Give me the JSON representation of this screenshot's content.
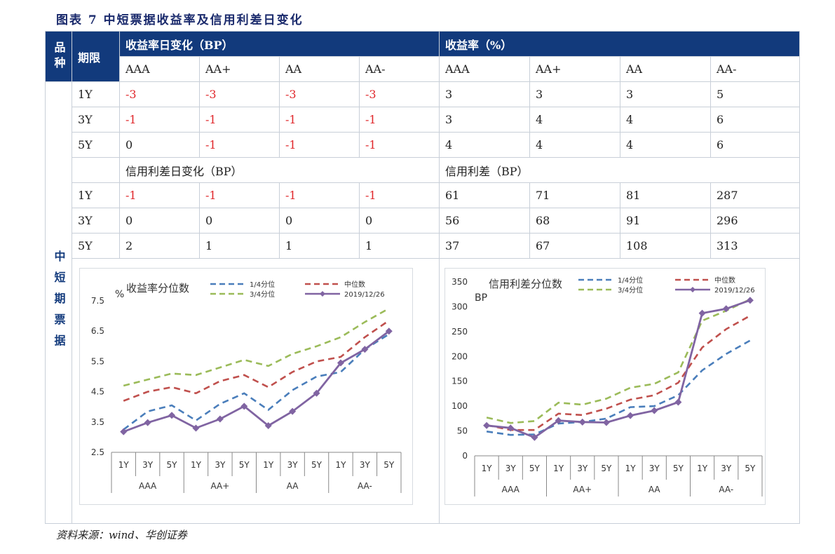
{
  "title": "图表 7   中短票据收益率及信用利差日变化",
  "source": "资料来源：wind、华创证券",
  "table": {
    "col_pinzhong": "品种",
    "col_qixian": "期限",
    "header_yield_change": "收益率日变化（BP）",
    "header_yield": "收益率（%）",
    "ratings": [
      "AAA",
      "AA+",
      "AA",
      "AA-"
    ],
    "category": "中短期票据",
    "yield_rows": [
      {
        "term": "1Y",
        "chg": [
          "-3",
          "-3",
          "-3",
          "-3"
        ],
        "val": [
          "3",
          "3",
          "3",
          "5"
        ]
      },
      {
        "term": "3Y",
        "chg": [
          "-1",
          "-1",
          "-1",
          "-1"
        ],
        "val": [
          "3",
          "4",
          "4",
          "6"
        ]
      },
      {
        "term": "5Y",
        "chg": [
          "0",
          "-1",
          "-1",
          "-1"
        ],
        "val": [
          "4",
          "4",
          "4",
          "6"
        ]
      }
    ],
    "header_spread_change": "信用利差日变化（BP）",
    "header_spread": "信用利差（BP）",
    "spread_rows": [
      {
        "term": "1Y",
        "chg": [
          "-1",
          "-1",
          "-1",
          "-1"
        ],
        "val": [
          "61",
          "71",
          "81",
          "287"
        ]
      },
      {
        "term": "3Y",
        "chg": [
          "0",
          "0",
          "0",
          "0"
        ],
        "val": [
          "56",
          "68",
          "91",
          "296"
        ]
      },
      {
        "term": "5Y",
        "chg": [
          "2",
          "1",
          "1",
          "1"
        ],
        "val": [
          "37",
          "67",
          "108",
          "313"
        ]
      }
    ]
  },
  "colors": {
    "q1": "#4a7ebb",
    "median": "#c0504d",
    "q3": "#9bbb59",
    "current": "#8064a2",
    "header_bg": "#123a7c",
    "negative": "#e0262a"
  },
  "chart_data": [
    {
      "type": "line",
      "title": "收益率分位数",
      "ylabel": "%",
      "ylim": [
        2.5,
        7.5
      ],
      "yticks": [
        "2.5",
        "3.5",
        "4.5",
        "5.5",
        "6.5",
        "7.5"
      ],
      "x_terms": [
        "1Y",
        "3Y",
        "5Y",
        "1Y",
        "3Y",
        "5Y",
        "1Y",
        "3Y",
        "5Y",
        "1Y",
        "3Y",
        "5Y"
      ],
      "groups": [
        "AAA",
        "AA+",
        "AA",
        "AA-"
      ],
      "series": [
        {
          "name": "1/4分位",
          "style": "dashed",
          "color_key": "q1",
          "values": [
            3.25,
            3.85,
            4.05,
            3.55,
            4.1,
            4.45,
            3.9,
            4.55,
            5.0,
            5.15,
            5.9,
            6.4
          ]
        },
        {
          "name": "中位数",
          "style": "dashed",
          "color_key": "median",
          "values": [
            4.2,
            4.5,
            4.65,
            4.45,
            4.85,
            5.05,
            4.65,
            5.15,
            5.5,
            5.65,
            6.3,
            6.85
          ]
        },
        {
          "name": "3/4分位",
          "style": "dashed",
          "color_key": "q3",
          "values": [
            4.7,
            4.9,
            5.1,
            5.05,
            5.3,
            5.55,
            5.35,
            5.75,
            6.0,
            6.3,
            6.8,
            7.25
          ]
        },
        {
          "name": "2019/12/26",
          "style": "solid-diamond",
          "color_key": "current",
          "values": [
            3.18,
            3.48,
            3.72,
            3.3,
            3.6,
            4.02,
            3.38,
            3.85,
            4.45,
            5.45,
            5.9,
            6.5
          ]
        }
      ]
    },
    {
      "type": "line",
      "title": "信用利差分位数",
      "ylabel": "BP",
      "ylim": [
        0,
        350
      ],
      "yticks": [
        "0",
        "50",
        "100",
        "150",
        "200",
        "250",
        "300",
        "350"
      ],
      "x_terms": [
        "1Y",
        "3Y",
        "5Y",
        "1Y",
        "3Y",
        "5Y",
        "1Y",
        "3Y",
        "5Y",
        "1Y",
        "3Y",
        "5Y"
      ],
      "groups": [
        "AAA",
        "AA+",
        "AA",
        "AA-"
      ],
      "series": [
        {
          "name": "1/4分位",
          "style": "dashed",
          "color_key": "q1",
          "values": [
            49,
            42,
            43,
            65,
            68,
            75,
            98,
            100,
            122,
            172,
            205,
            232
          ]
        },
        {
          "name": "中位数",
          "style": "dashed",
          "color_key": "median",
          "values": [
            62,
            52,
            52,
            85,
            82,
            95,
            113,
            122,
            147,
            218,
            255,
            282
          ]
        },
        {
          "name": "3/4分位",
          "style": "dashed",
          "color_key": "q3",
          "values": [
            77,
            66,
            70,
            107,
            103,
            115,
            137,
            145,
            168,
            272,
            292,
            315
          ]
        },
        {
          "name": "2019/12/26",
          "style": "solid-diamond",
          "color_key": "current",
          "values": [
            61,
            56,
            37,
            71,
            68,
            67,
            81,
            91,
            108,
            287,
            296,
            313
          ]
        }
      ]
    }
  ]
}
